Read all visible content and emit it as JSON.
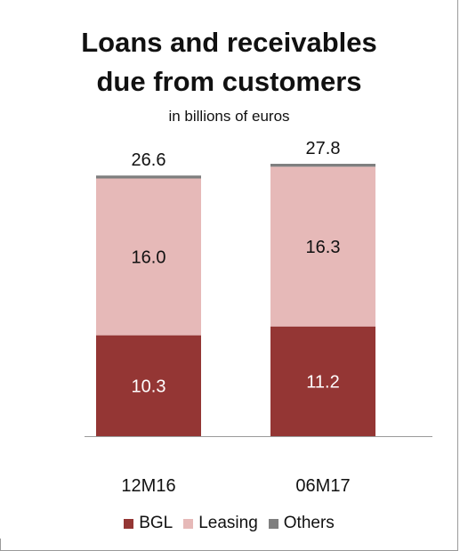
{
  "colors": {
    "bgl": "#943634",
    "leasing": "#e6b9b8",
    "others": "#7f7f7f",
    "axis": "#9a9a9a",
    "total_text": "#111111",
    "inner_text_light": "#ffffff",
    "inner_text_dark": "#111111"
  },
  "chart_data": {
    "type": "bar",
    "stacked": true,
    "title": "Loans and receivables due from customers",
    "title_lines": [
      "Loans and receivables",
      "due from customers"
    ],
    "subtitle": "in billions of euros",
    "categories": [
      "12M16",
      "06M17"
    ],
    "series": [
      {
        "name": "BGL",
        "values": [
          10.3,
          11.2
        ],
        "labels": [
          "10.3",
          "11.2"
        ]
      },
      {
        "name": "Leasing",
        "values": [
          16.0,
          16.3
        ],
        "labels": [
          "16.0",
          "16.3"
        ]
      },
      {
        "name": "Others",
        "values": [
          0.3,
          0.3
        ],
        "labels": [
          "",
          ""
        ]
      }
    ],
    "totals": [
      "26.6",
      "27.8"
    ],
    "ylim": [
      0,
      28
    ],
    "grid": false,
    "legend_position": "bottom"
  }
}
